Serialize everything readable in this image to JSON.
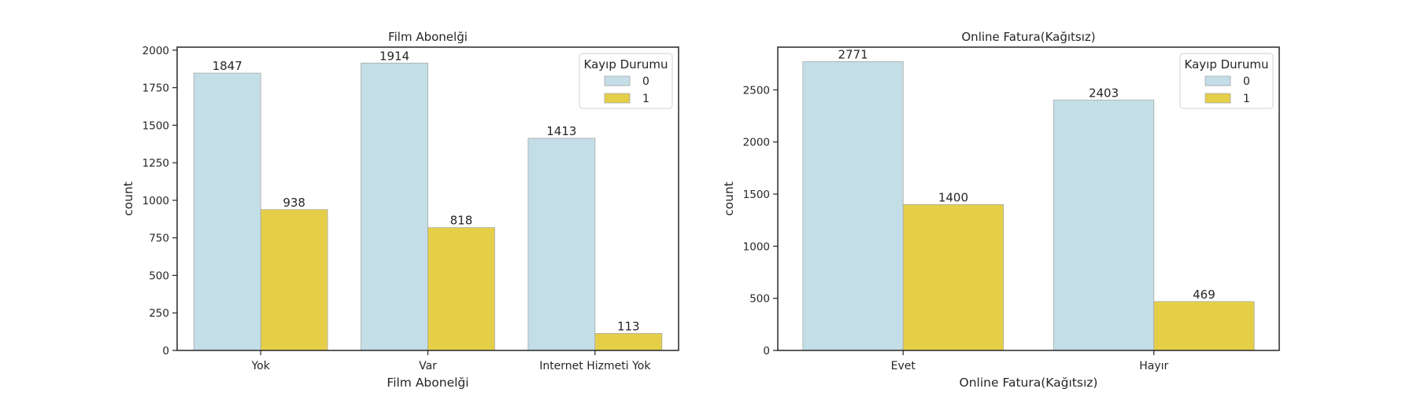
{
  "legend": {
    "title": "Kayıp Durumu",
    "entries": [
      {
        "label": "0",
        "color": "#c3dee7"
      },
      {
        "label": "1",
        "color": "#e6cf48"
      }
    ]
  },
  "colors": {
    "series_0": "#c3dee7",
    "series_1": "#e6cf48",
    "bar_edge": "#a8a8a8",
    "axis": "#262626"
  },
  "chart_data": [
    {
      "type": "bar",
      "title": "Film Abonelği",
      "xlabel": "Film Abonelği",
      "ylabel": "count",
      "categories": [
        "Yok",
        "Var",
        "Internet Hizmeti Yok"
      ],
      "ylim": [
        0,
        2020
      ],
      "yticks": [
        0,
        250,
        500,
        750,
        1000,
        1250,
        1500,
        1750,
        2000
      ],
      "grid": false,
      "legend_position": "upper right",
      "series": [
        {
          "name": "0",
          "values": [
            1847,
            1914,
            1413
          ]
        },
        {
          "name": "1",
          "values": [
            938,
            818,
            113
          ]
        }
      ]
    },
    {
      "type": "bar",
      "title": "Online Fatura(Kağıtsız)",
      "xlabel": "Online Fatura(Kağıtsız)",
      "ylabel": "count",
      "categories": [
        "Evet",
        "Hayır"
      ],
      "ylim": [
        0,
        2910
      ],
      "yticks": [
        0,
        500,
        1000,
        1500,
        2000,
        2500
      ],
      "grid": false,
      "legend_position": "upper right",
      "series": [
        {
          "name": "0",
          "values": [
            2771,
            2403
          ]
        },
        {
          "name": "1",
          "values": [
            1400,
            469
          ]
        }
      ]
    }
  ]
}
